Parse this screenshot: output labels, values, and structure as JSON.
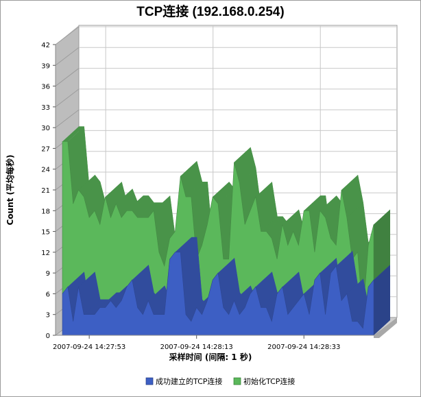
{
  "chart_data": {
    "type": "area",
    "stacked": true,
    "title": "TCP连接 (192.168.0.254)",
    "xlabel": "采样时间 (间隔: 1 秒)",
    "ylabel": "Count (平均每秒)",
    "ylim": [
      0,
      42
    ],
    "yticks": [
      0,
      3,
      6,
      9,
      12,
      15,
      18,
      21,
      24,
      27,
      30,
      33,
      36,
      39,
      42
    ],
    "x_tick_labels": [
      "2007-09-24 14:27:53",
      "2007-09-24 14:28:13",
      "2007-09-24 14:28:33"
    ],
    "x_tick_indices": [
      5,
      25,
      45
    ],
    "grid": true,
    "legend_position": "bottom",
    "series": [
      {
        "name": "成功建立的TCP连接",
        "color": "#3d5fc4",
        "values": [
          6,
          7,
          2,
          7,
          3,
          3,
          3,
          4,
          4,
          5,
          4,
          5,
          7,
          8,
          4,
          3,
          5,
          3,
          3,
          3,
          11,
          12,
          12,
          3,
          2,
          4,
          3,
          5,
          8,
          9,
          4,
          3,
          5,
          3,
          4,
          6,
          7,
          4,
          4,
          2,
          6,
          7,
          3,
          4,
          5,
          6,
          3,
          8,
          9,
          3,
          9,
          10,
          5,
          6,
          2,
          2,
          1,
          7,
          8
        ]
      },
      {
        "name": "初始化TCP连接",
        "color": "#5bb85b",
        "values": [
          22,
          21,
          17,
          14,
          17,
          14,
          15,
          12,
          16,
          12,
          15,
          12,
          11,
          10,
          13,
          14,
          12,
          15,
          9,
          7,
          3,
          3,
          11,
          17,
          18,
          7,
          10,
          11,
          12,
          10,
          7,
          8,
          20,
          19,
          12,
          12,
          13,
          11,
          11,
          12,
          5,
          9,
          10,
          11,
          8,
          12,
          15,
          4,
          9,
          14,
          5,
          3,
          16,
          11,
          9,
          10,
          2,
          6,
          8
        ]
      }
    ]
  }
}
